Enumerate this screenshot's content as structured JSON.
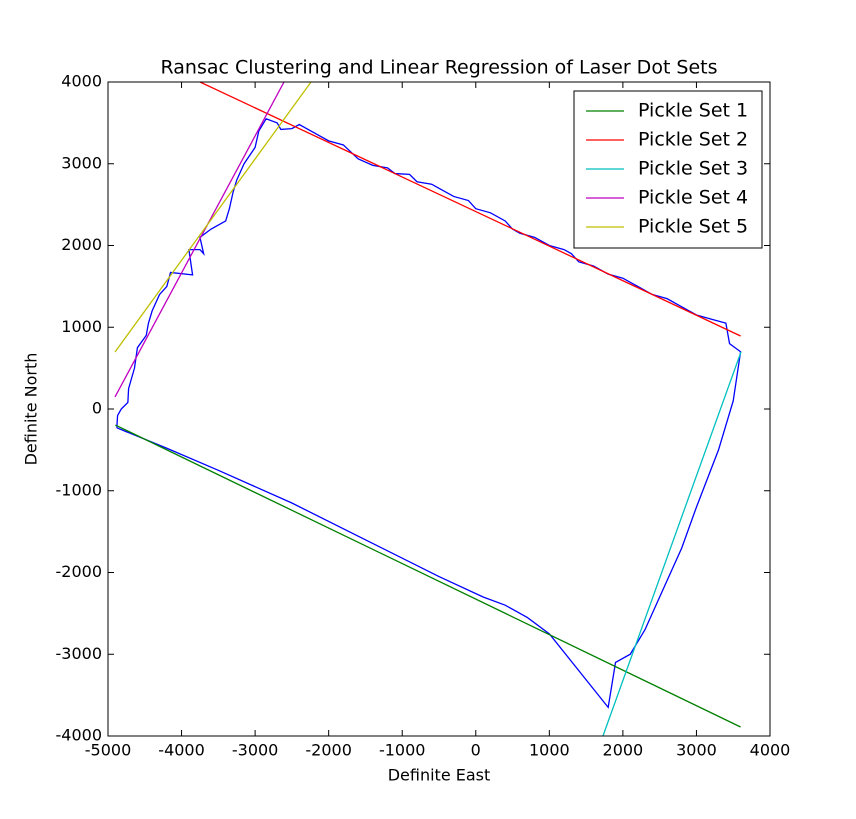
{
  "chart_data": {
    "type": "line",
    "title": "Ransac Clustering and Linear Regression of Laser Dot Sets",
    "x_label": "Definite East",
    "y_label": "Definite North",
    "xlim": [
      -5000,
      4000
    ],
    "ylim": [
      -4000,
      4000
    ],
    "xticks": [
      -5000,
      -4000,
      -3000,
      -2000,
      -1000,
      0,
      1000,
      2000,
      3000,
      4000
    ],
    "yticks": [
      -4000,
      -3000,
      -2000,
      -1000,
      0,
      1000,
      2000,
      3000,
      4000
    ],
    "legend": "upper right",
    "series": [
      {
        "color": "#0000ff",
        "x": [
          -4880,
          -4870,
          -4820,
          -4730,
          -4720,
          -4640,
          -4600,
          -4480,
          -4450,
          -4400,
          -4300,
          -4200,
          -4150,
          -3850,
          -3860,
          -3900,
          -3750,
          -3700,
          -3750,
          -3600,
          -3400,
          -3350,
          -3300,
          -3250,
          -3150,
          -3000,
          -2950,
          -2850,
          -2700,
          -2650,
          -2500,
          -2400,
          -2200,
          -2000,
          -1800,
          -1600,
          -1400,
          -1200,
          -1100,
          -900,
          -800,
          -600,
          -500,
          -300,
          -100,
          0,
          200,
          400,
          500,
          600,
          800,
          1000,
          1200,
          1300,
          1400,
          1600,
          1800,
          2000,
          2200,
          2400,
          2600,
          2800,
          3000,
          3200,
          3400,
          3450,
          3600,
          3500,
          3300,
          3000,
          2800,
          2500,
          2300,
          2100,
          1900,
          1800,
          1000,
          700,
          400,
          100,
          -500,
          -1500,
          -2500,
          -3500,
          -4200,
          -4880
        ],
        "values": [
          -230,
          -80,
          0,
          80,
          250,
          500,
          750,
          900,
          1050,
          1200,
          1400,
          1500,
          1670,
          1640,
          1700,
          1950,
          1950,
          1900,
          2100,
          2200,
          2300,
          2450,
          2650,
          2800,
          3000,
          3200,
          3400,
          3550,
          3500,
          3420,
          3430,
          3480,
          3380,
          3280,
          3230,
          3060,
          2980,
          2950,
          2880,
          2870,
          2780,
          2750,
          2700,
          2600,
          2550,
          2450,
          2400,
          2300,
          2200,
          2150,
          2100,
          2000,
          1950,
          1900,
          1800,
          1750,
          1650,
          1600,
          1500,
          1400,
          1350,
          1250,
          1150,
          1100,
          1050,
          800,
          700,
          100,
          -500,
          -1200,
          -1700,
          -2300,
          -2700,
          -3000,
          -3100,
          -3650,
          -2750,
          -2550,
          -2400,
          -2300,
          -2050,
          -1600,
          -1150,
          -750,
          -480,
          -230
        ]
      },
      {
        "name": "Pickle Set 1",
        "color": "#008000",
        "x": [
          -4900,
          3600
        ],
        "values": [
          -196,
          -3890
        ]
      },
      {
        "name": "Pickle Set 2",
        "color": "#ff0000",
        "x": [
          -3749,
          3600
        ],
        "values": [
          4000,
          893
        ]
      },
      {
        "name": "Pickle Set 3",
        "color": "#00bfbf",
        "x": [
          1729,
          3605
        ],
        "values": [
          -4000,
          697
        ]
      },
      {
        "name": "Pickle Set 4",
        "color": "#bf00bf",
        "x": [
          -4905,
          -2607
        ],
        "values": [
          147,
          4000
        ]
      },
      {
        "name": "Pickle Set 5",
        "color": "#bfbf00",
        "x": [
          -4905,
          -2240
        ],
        "values": [
          697,
          4000
        ]
      }
    ]
  }
}
